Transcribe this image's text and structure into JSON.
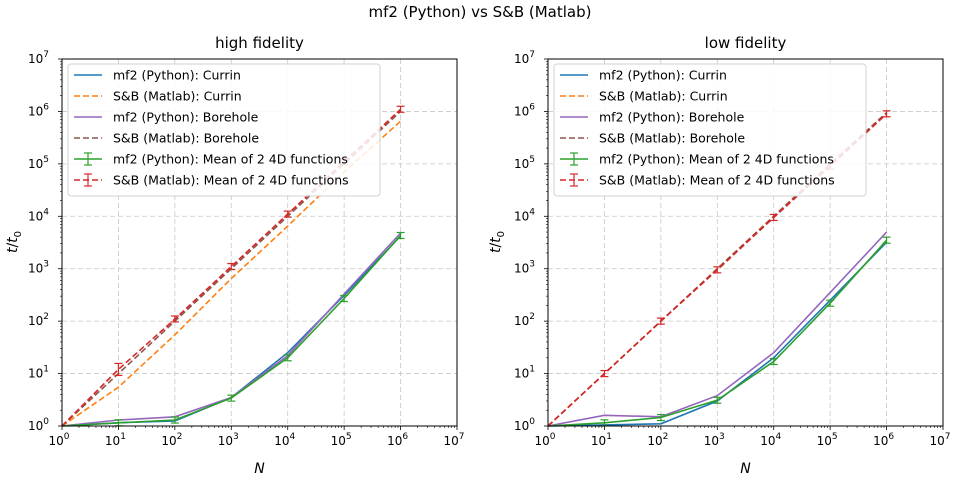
{
  "figure": {
    "suptitle": "mf2 (Python) vs S&B (Matlab)"
  },
  "colors": {
    "blue": "#1f77b4",
    "orange": "#ff7f0e",
    "purple": "#9467bd",
    "brown": "#8c564b",
    "green": "#2ca02c",
    "red": "#d62728"
  },
  "chart_data": [
    {
      "type": "line",
      "title": "high fidelity",
      "xlabel": "N",
      "ylabel": "t/t0",
      "xscale": "log",
      "yscale": "log",
      "xlim": [
        1,
        10000000
      ],
      "ylim": [
        1,
        10000000
      ],
      "grid": true,
      "legend_position": "top-left",
      "x": [
        1,
        10,
        100,
        1000,
        10000,
        100000,
        1000000
      ],
      "xticks": [
        "10",
        "10",
        "10",
        "10",
        "10",
        "10",
        "10",
        "10"
      ],
      "xtick_exps": [
        "0",
        "1",
        "2",
        "3",
        "4",
        "5",
        "6",
        "7"
      ],
      "yticks": [
        "10",
        "10",
        "10",
        "10",
        "10",
        "10",
        "10",
        "10"
      ],
      "ytick_exps": [
        "0",
        "1",
        "2",
        "3",
        "4",
        "5",
        "6",
        "7"
      ],
      "series": [
        {
          "name": "mf2 (Python): Currin",
          "color": "#1f77b4",
          "style": "solid",
          "values": [
            1,
            1.15,
            1.25,
            3.5,
            25,
            310,
            4200
          ]
        },
        {
          "name": "S&B (Matlab): Currin",
          "color": "#ff7f0e",
          "style": "dashed",
          "values": [
            1,
            5.5,
            55,
            650,
            6500,
            70000,
            650000
          ]
        },
        {
          "name": "mf2 (Python): Borehole",
          "color": "#9467bd",
          "style": "solid",
          "values": [
            1,
            1.3,
            1.5,
            3.5,
            22,
            330,
            4800
          ]
        },
        {
          "name": "S&B (Matlab): Borehole",
          "color": "#8c564b",
          "style": "dashed",
          "values": [
            1,
            10,
            100,
            1000,
            10000,
            100000,
            1000000
          ]
        },
        {
          "name": "mf2 (Python): Mean of 2 4D functions",
          "color": "#2ca02c",
          "style": "solid",
          "errorbars": true,
          "values": [
            1,
            1.15,
            1.3,
            3.4,
            20,
            270,
            4300
          ]
        },
        {
          "name": "S&B (Matlab): Mean of 2 4D functions",
          "color": "#d62728",
          "style": "dashed",
          "errorbars": true,
          "values": [
            1,
            12,
            110,
            1100,
            11000,
            110000,
            1100000
          ]
        }
      ]
    },
    {
      "type": "line",
      "title": "low fidelity",
      "xlabel": "N",
      "ylabel": "t/t0",
      "xscale": "log",
      "yscale": "log",
      "xlim": [
        1,
        10000000
      ],
      "ylim": [
        1,
        10000000
      ],
      "grid": true,
      "legend_position": "top-left",
      "x": [
        1,
        10,
        100,
        1000,
        10000,
        100000,
        1000000
      ],
      "xticks": [
        "10",
        "10",
        "10",
        "10",
        "10",
        "10",
        "10",
        "10"
      ],
      "xtick_exps": [
        "0",
        "1",
        "2",
        "3",
        "4",
        "5",
        "6",
        "7"
      ],
      "yticks": [
        "10",
        "10",
        "10",
        "10",
        "10",
        "10",
        "10",
        "10"
      ],
      "ytick_exps": [
        "0",
        "1",
        "2",
        "3",
        "4",
        "5",
        "6",
        "7"
      ],
      "series": [
        {
          "name": "mf2 (Python): Currin",
          "color": "#1f77b4",
          "style": "solid",
          "values": [
            1,
            1.05,
            1.1,
            3.0,
            20,
            250,
            3200
          ]
        },
        {
          "name": "S&B (Matlab): Currin",
          "color": "#ff7f0e",
          "style": "dashed",
          "values": [
            1,
            10,
            100,
            1000,
            10000,
            100000,
            900000
          ]
        },
        {
          "name": "mf2 (Python): Borehole",
          "color": "#9467bd",
          "style": "solid",
          "values": [
            1,
            1.6,
            1.5,
            3.8,
            25,
            350,
            5000
          ]
        },
        {
          "name": "S&B (Matlab): Borehole",
          "color": "#8c564b",
          "style": "dashed",
          "values": [
            1,
            10,
            100,
            1000,
            10000,
            100000,
            950000
          ]
        },
        {
          "name": "mf2 (Python): Mean of 2 4D functions",
          "color": "#2ca02c",
          "style": "solid",
          "errorbars": true,
          "values": [
            1,
            1.15,
            1.45,
            3.1,
            17,
            220,
            3500
          ]
        },
        {
          "name": "S&B (Matlab): Mean of 2 4D functions",
          "color": "#d62728",
          "style": "dashed",
          "errorbars": true,
          "values": [
            1,
            10,
            100,
            950,
            9500,
            90000,
            900000
          ]
        }
      ]
    }
  ]
}
